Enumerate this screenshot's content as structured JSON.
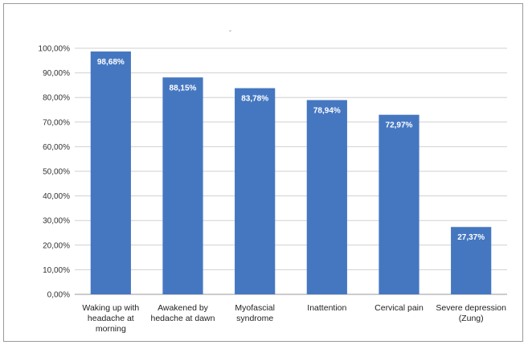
{
  "chart_data": {
    "type": "bar",
    "title": "",
    "xlabel": "",
    "ylabel": "",
    "ylim": [
      0,
      100
    ],
    "ytick_step": 10,
    "ytick_labels": [
      "0,00%",
      "10,00%",
      "20,00%",
      "30,00%",
      "40,00%",
      "50,00%",
      "60,00%",
      "70,00%",
      "80,00%",
      "90,00%",
      "100,00%"
    ],
    "grid": true,
    "legend": "none",
    "bar_color": "#4577c1",
    "categories": [
      [
        "Waking up with",
        "headache at",
        "morning"
      ],
      [
        "Awakened by",
        "hedache at dawn"
      ],
      [
        "Myofascial",
        "syndrome"
      ],
      [
        "Inattention"
      ],
      [
        "Cervical pain"
      ],
      [
        "Severe depression",
        "(Zung)"
      ]
    ],
    "values": [
      98.68,
      88.15,
      83.78,
      78.94,
      72.97,
      27.37
    ],
    "data_labels": [
      "98,68%",
      "88,15%",
      "83,78%",
      "78,94%",
      "72,97%",
      "27,37%"
    ]
  }
}
